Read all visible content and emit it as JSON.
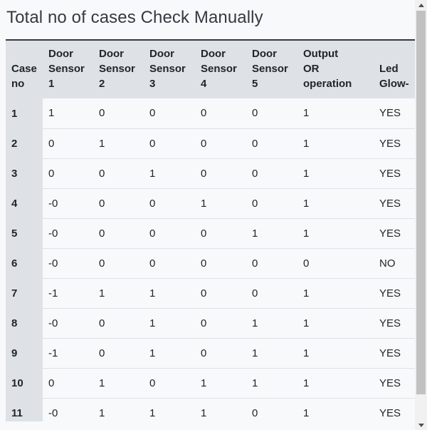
{
  "title": "Total no of cases Check Manually",
  "table": {
    "headers": [
      [
        "Case",
        "no"
      ],
      [
        "Door",
        "Sensor",
        "1"
      ],
      [
        "Door",
        "Sensor",
        "2"
      ],
      [
        "Door",
        "Sensor",
        "3"
      ],
      [
        "Door",
        "Sensor",
        "4"
      ],
      [
        "Door",
        "Sensor",
        "5"
      ],
      [
        "Output",
        "OR",
        "operation"
      ],
      [
        "Led",
        "Glow-"
      ]
    ],
    "rows": [
      [
        "1",
        "1",
        "0",
        "0",
        "0",
        "0",
        "1",
        "YES"
      ],
      [
        "2",
        "0",
        "1",
        "0",
        "0",
        "0",
        "1",
        "YES"
      ],
      [
        "3",
        "0",
        "0",
        "1",
        "0",
        "0",
        "1",
        "YES"
      ],
      [
        "4",
        "-0",
        "0",
        "0",
        "1",
        "0",
        "1",
        "YES"
      ],
      [
        "5",
        "-0",
        "0",
        "0",
        "0",
        "1",
        "1",
        "YES"
      ],
      [
        "6",
        "-0",
        "0",
        "0",
        "0",
        "0",
        "0",
        "NO"
      ],
      [
        "7",
        "-1",
        "1",
        "1",
        "0",
        "0",
        "1",
        "YES"
      ],
      [
        "8",
        "-0",
        "0",
        "1",
        "0",
        "1",
        "1",
        "YES"
      ],
      [
        "9",
        "-1",
        "0",
        "1",
        "0",
        "1",
        "1",
        "YES"
      ],
      [
        "10",
        "0",
        "1",
        "0",
        "1",
        "1",
        "1",
        "YES"
      ],
      [
        "11",
        "-0",
        "1",
        "1",
        "1",
        "0",
        "1",
        "YES"
      ]
    ]
  },
  "colors": {
    "header_bg": "#dee2e6",
    "page_bg": "#f8f9fa",
    "header_border": "#343a40"
  },
  "scrollbar": {
    "up_icon": "triangle-up-icon",
    "down_icon": "triangle-down-icon"
  }
}
